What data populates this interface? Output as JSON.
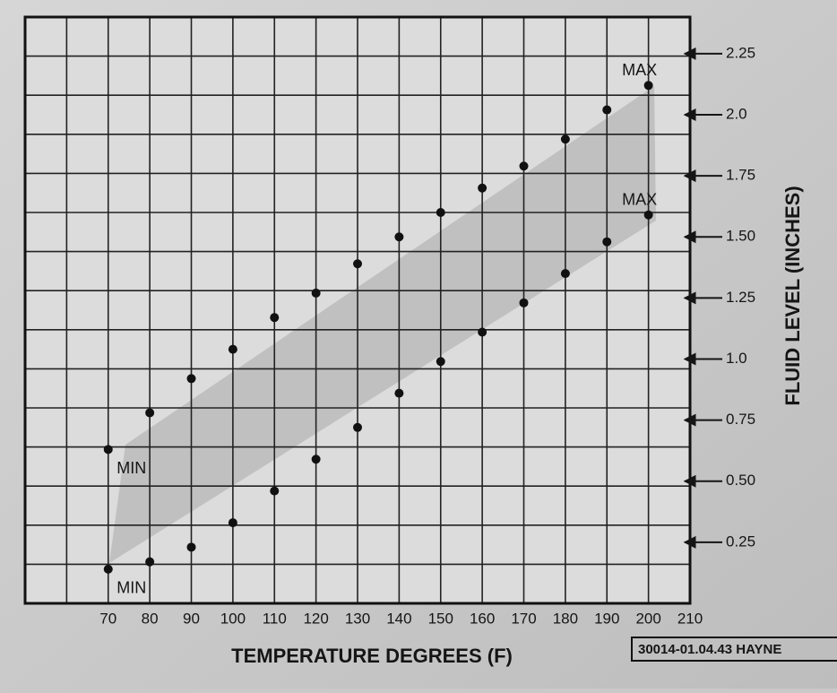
{
  "chart_data": {
    "type": "scatter",
    "x_label": "TEMPERATURE DEGREES (F)",
    "y_label": "FLUID LEVEL (INCHES)",
    "x": [
      70,
      80,
      90,
      100,
      110,
      120,
      130,
      140,
      150,
      160,
      170,
      180,
      190,
      200
    ],
    "series": [
      {
        "color": "#111111",
        "values": [
          0.63,
          0.78,
          0.92,
          1.04,
          1.17,
          1.27,
          1.39,
          1.5,
          1.6,
          1.7,
          1.79,
          1.9,
          2.02,
          2.12
        ]
      },
      {
        "color": "#111111",
        "values": [
          0.14,
          0.17,
          0.23,
          0.33,
          0.46,
          0.59,
          0.72,
          0.86,
          0.99,
          1.11,
          1.23,
          1.35,
          1.48,
          1.59
        ]
      }
    ],
    "annotations": [
      "MIN",
      "MIN",
      "MAX",
      "MAX"
    ],
    "xlim": [
      50,
      210
    ],
    "xticks": [
      70,
      80,
      90,
      100,
      110,
      120,
      130,
      140,
      150,
      160,
      170,
      180,
      190,
      200,
      210
    ],
    "ylim": [
      0,
      2.4
    ],
    "yticks": [
      0.25,
      {
        "value": 0.5,
        "label": "0.50"
      },
      0.75,
      {
        "value": 1,
        "label": "1.0"
      },
      1.25,
      {
        "value": 1.5,
        "label": "1.50"
      },
      1.75,
      {
        "value": 2,
        "label": "2.0"
      },
      2.25
    ],
    "source": "30014-01.04.43 HAYNE"
  }
}
